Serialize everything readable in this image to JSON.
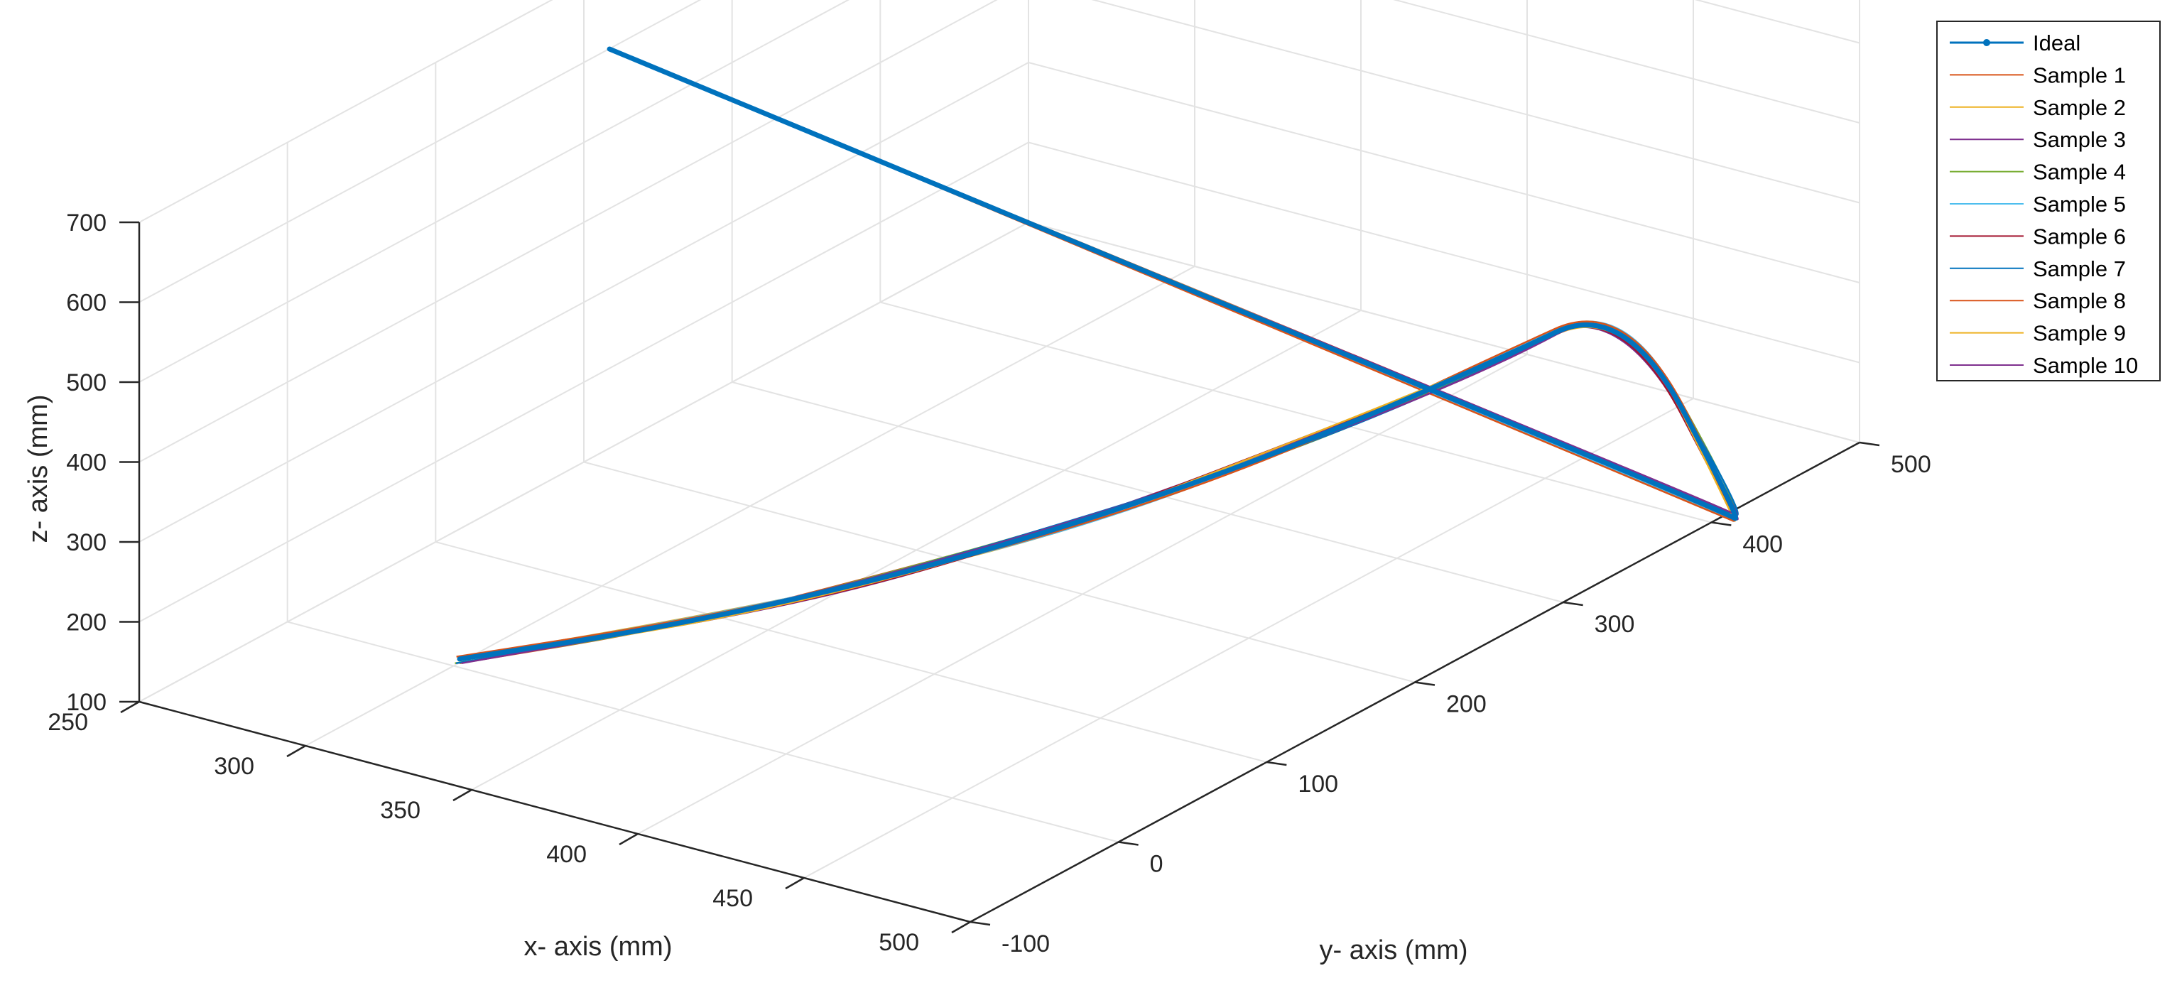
{
  "chart_data": {
    "type": "line",
    "projection": "3d",
    "title": "",
    "xlabel": "x- axis (mm)",
    "ylabel": "y- axis (mm)",
    "zlabel": "z- axis (mm)",
    "xlim": [
      250,
      500
    ],
    "ylim": [
      -100,
      500
    ],
    "zlim": [
      100,
      700
    ],
    "x_ticks": [
      "250",
      "300",
      "350",
      "400",
      "450",
      "500"
    ],
    "y_ticks": [
      "-100",
      "0",
      "100",
      "200",
      "300",
      "400",
      "500"
    ],
    "z_ticks": [
      "100",
      "200",
      "300",
      "400",
      "500",
      "600",
      "700"
    ],
    "grid": true,
    "legend_position": "top-right",
    "ideal_path": {
      "name": "Ideal",
      "color": "#0072BD",
      "x": [
        304,
        342,
        377,
        409,
        436,
        455,
        465
      ],
      "y": [
        -5,
        50,
        110,
        180,
        260,
        350,
        420
      ],
      "z": [
        118,
        145,
        180,
        220,
        262,
        298,
        320
      ]
    },
    "series": [
      {
        "name": "Ideal",
        "color": "#0072BD"
      },
      {
        "name": "Sample 1",
        "color": "#D95319"
      },
      {
        "name": "Sample 2",
        "color": "#EDB120"
      },
      {
        "name": "Sample 3",
        "color": "#7E2F8E"
      },
      {
        "name": "Sample 4",
        "color": "#77AC30"
      },
      {
        "name": "Sample 5",
        "color": "#4DBEEE"
      },
      {
        "name": "Sample 6",
        "color": "#A2142F"
      },
      {
        "name": "Sample 7",
        "color": "#0072BD"
      },
      {
        "name": "Sample 8",
        "color": "#D95319"
      },
      {
        "name": "Sample 9",
        "color": "#EDB120"
      },
      {
        "name": "Sample 10",
        "color": "#7E2F8E"
      }
    ]
  }
}
